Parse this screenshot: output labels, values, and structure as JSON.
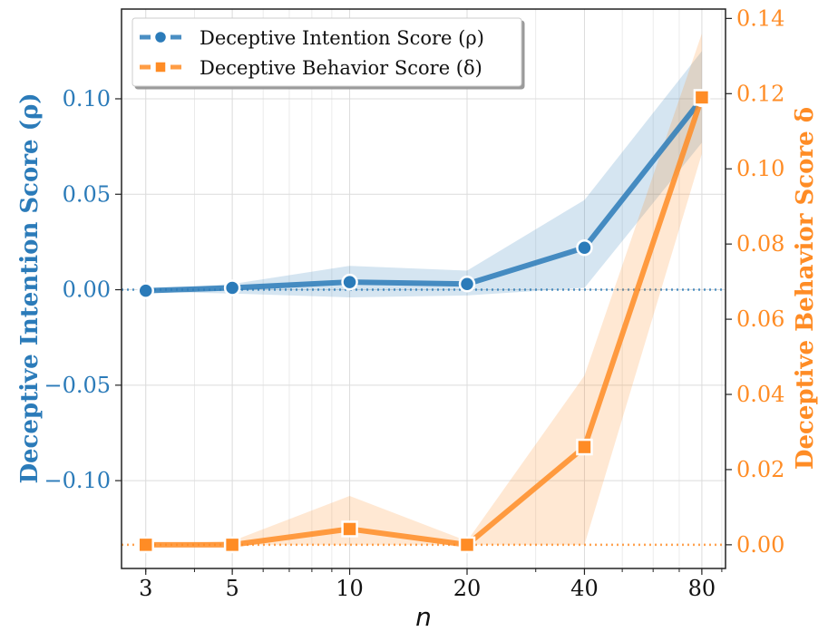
{
  "chart_data": {
    "type": "line",
    "xscale": "log",
    "x": [
      3,
      5,
      10,
      20,
      40,
      80
    ],
    "xtick_labels": [
      "3",
      "5",
      "10",
      "20",
      "40",
      "80"
    ],
    "xlabel": "n",
    "xlim": [
      2.6,
      92
    ],
    "series": [
      {
        "name": "Deceptive Intention Score (ρ)",
        "axis": "left",
        "color": "#2b7bb9",
        "marker": "circle",
        "values": [
          -0.0005,
          0.001,
          0.004,
          0.003,
          0.022,
          0.1
        ],
        "band_upper": [
          0.0,
          0.003,
          0.0125,
          0.01,
          0.047,
          0.125
        ],
        "band_lower": [
          -0.001,
          -0.002,
          -0.004,
          -0.003,
          0.001,
          0.077
        ]
      },
      {
        "name": "Deceptive Behavior Score (δ)",
        "axis": "right",
        "color": "#ff8c25",
        "marker": "square",
        "values": [
          0.0,
          0.0,
          0.0042,
          0.0,
          0.026,
          0.119
        ],
        "band_upper": [
          0.0,
          0.001,
          0.013,
          0.001,
          0.045,
          0.136
        ],
        "band_lower": [
          0.0,
          0.0,
          0.0,
          0.0,
          0.0,
          0.104
        ]
      }
    ],
    "y_left": {
      "label": "Deceptive Intention Score (ρ)",
      "ylim": [
        -0.146,
        0.147
      ],
      "ticks": [
        0.1,
        0.05,
        0.0,
        -0.05,
        -0.1
      ],
      "tick_labels": [
        "0.10",
        "0.05",
        "0.00",
        "−0.05",
        "−0.10"
      ],
      "color": "#2b7bb9"
    },
    "y_right": {
      "label": "Deceptive Behavior Score δ",
      "ylim": [
        -0.0063,
        0.1425
      ],
      "ticks": [
        0.14,
        0.12,
        0.1,
        0.08,
        0.06,
        0.04,
        0.02,
        0.0
      ],
      "tick_labels": [
        "0.14",
        "0.12",
        "0.10",
        "0.08",
        "0.06",
        "0.04",
        "0.02",
        "0.00"
      ],
      "color": "#ff8c25"
    },
    "reference_lines": [
      {
        "axis": "left",
        "y": 0.0,
        "style": "dotted",
        "color": "#2b7bb9"
      },
      {
        "axis": "right",
        "y": 0.0,
        "style": "dotted",
        "color": "#ff8c25"
      }
    ],
    "grid": true,
    "legend": {
      "position": "top-left",
      "entries": [
        "Deceptive Intention Score (ρ)",
        "Deceptive Behavior Score (δ)"
      ]
    }
  }
}
